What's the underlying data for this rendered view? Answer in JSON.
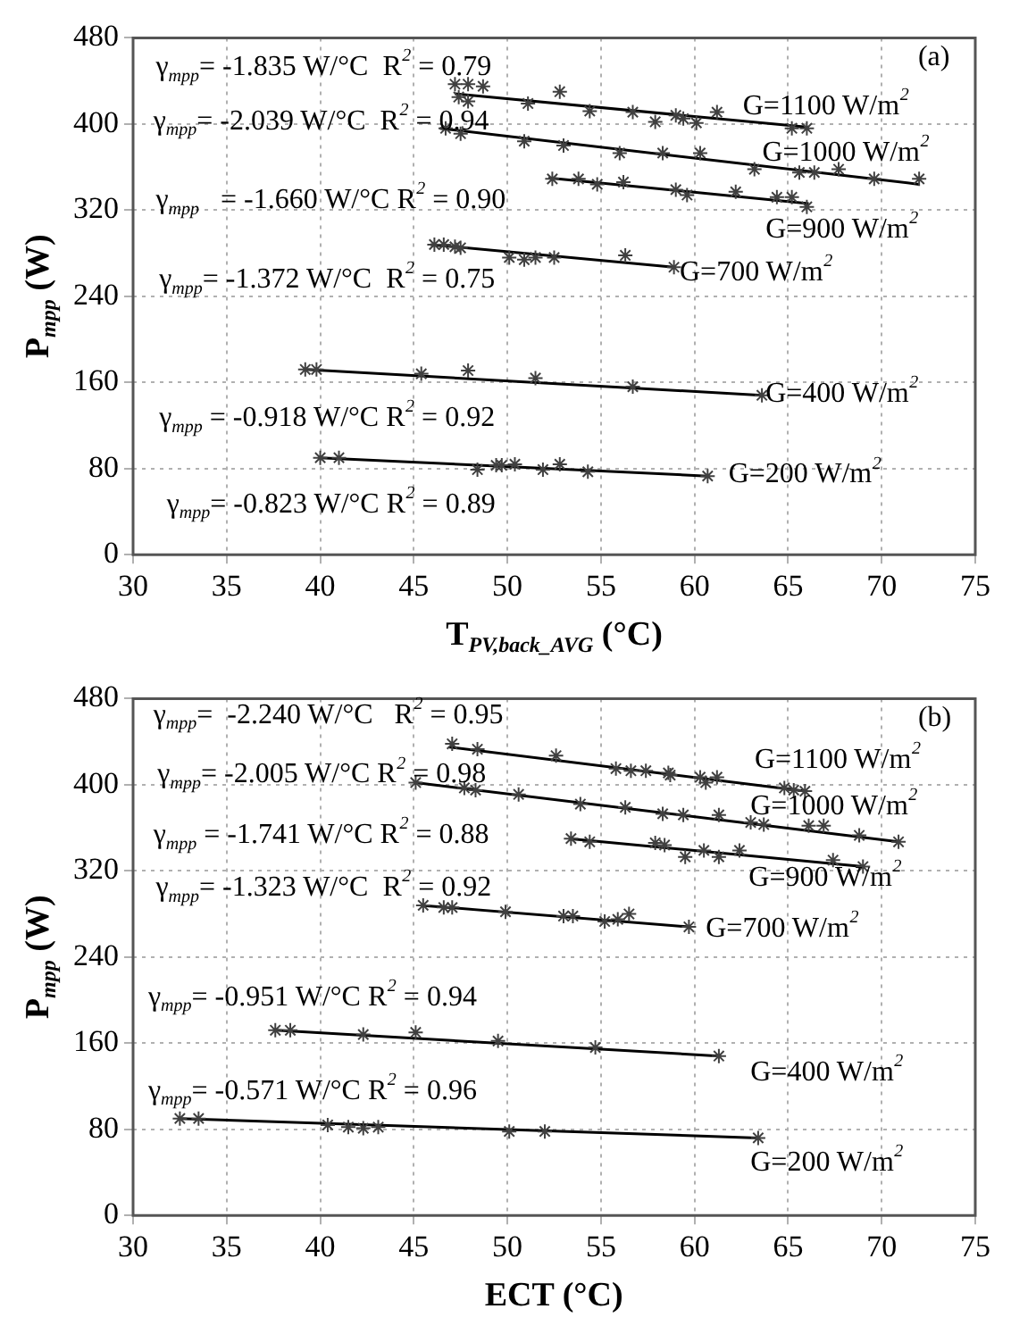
{
  "chart_data": [
    {
      "type": "scatter",
      "xlabel": "T$_{PV,back_AVG}$ (°C)",
      "ylabel": "P$_{mpp}$ (W)",
      "xlim": [
        30,
        75
      ],
      "xticks": [
        30,
        35,
        40,
        45,
        50,
        55,
        60,
        65,
        70,
        75
      ],
      "ylim": [
        0,
        480
      ],
      "yticks": [
        0,
        80,
        160,
        240,
        320,
        400,
        480
      ],
      "grid": true,
      "legend": false,
      "marker": "cross",
      "series": [
        {
          "color": "#404040",
          "x": [
            47.2,
            47.9,
            48.7,
            47.4,
            47.9,
            51.1,
            52.8,
            54.4,
            56.7,
            57.9,
            59.0,
            59.4,
            60.1,
            61.2,
            65.2,
            66.0
          ],
          "values": [
            437,
            437,
            435,
            425,
            421,
            419,
            430,
            412,
            411,
            402,
            408,
            405,
            401,
            411,
            396,
            396
          ]
        },
        {
          "color": "#404040",
          "x": [
            46.7,
            47.5,
            50.9,
            53.0,
            56.0,
            58.3,
            60.3,
            63.2,
            65.6,
            66.4,
            67.7,
            69.6,
            72.0
          ],
          "values": [
            396,
            391,
            384,
            380,
            373,
            373,
            373,
            358,
            355,
            355,
            358,
            349,
            349
          ]
        },
        {
          "color": "#404040",
          "x": [
            52.4,
            53.8,
            54.8,
            56.2,
            59.0,
            59.6,
            62.2,
            64.4,
            65.2,
            66.0
          ],
          "values": [
            349,
            349,
            344,
            346,
            339,
            334,
            337,
            332,
            332,
            323
          ]
        },
        {
          "color": "#404040",
          "x": [
            46.1,
            46.6,
            47.2,
            47.5,
            50.1,
            50.9,
            51.5,
            52.5,
            56.3,
            58.9
          ],
          "values": [
            288,
            288,
            286,
            285,
            276,
            274,
            276,
            276,
            278,
            267
          ]
        },
        {
          "color": "#404040",
          "x": [
            39.2,
            39.8,
            45.4,
            47.9,
            51.5,
            56.7,
            63.6
          ],
          "values": [
            172,
            172,
            168,
            171,
            164,
            156,
            148
          ]
        },
        {
          "color": "#404040",
          "x": [
            40.0,
            41.0,
            48.4,
            49.4,
            49.7,
            50.4,
            51.9,
            52.8,
            54.3,
            60.7
          ],
          "values": [
            90,
            90,
            79,
            83,
            83,
            84,
            79,
            84,
            77,
            73
          ]
        },
        {
          "type": "line",
          "marker": "none",
          "color": "#000000",
          "x": [
            47.2,
            66.1
          ],
          "values": [
            428,
            397
          ]
        },
        {
          "type": "line",
          "marker": "none",
          "color": "#000000",
          "x": [
            46.4,
            72.0
          ],
          "values": [
            396,
            344
          ]
        },
        {
          "type": "line",
          "marker": "none",
          "color": "#000000",
          "x": [
            52.2,
            66.1
          ],
          "values": [
            350,
            326
          ]
        },
        {
          "type": "line",
          "marker": "none",
          "color": "#000000",
          "x": [
            45.9,
            58.9
          ],
          "values": [
            288,
            267
          ]
        },
        {
          "type": "line",
          "marker": "none",
          "color": "#000000",
          "x": [
            39.2,
            63.6
          ],
          "values": [
            172,
            148
          ]
        },
        {
          "type": "line",
          "marker": "none",
          "color": "#000000",
          "x": [
            40.0,
            60.7
          ],
          "values": [
            90,
            73
          ]
        }
      ],
      "annotations": [
        "(a)",
        "γ$_{mpp}$= -1.835 W/°C  R$^{2}$ = 0.79",
        "γ$_{mpp}$= -2.039 W/°C  R$^{2}$ = 0.94",
        "γ$_{mpp}$   = -1.660 W/°C R$^{2}$ = 0.90",
        "γ$_{mpp}$= -1.372 W/°C  R$^{2}$ = 0.75",
        "γ$_{mpp}$ = -0.918 W/°C R$^{2}$ = 0.92",
        "γ$_{mpp}$= -0.823 W/°C R$^{2}$ = 0.89",
        "G=1100 W/m$^{2}$",
        "G=1000 W/m$^{2}$",
        "G=900 W/m$^{2}$",
        "G=700 W/m$^{2}$",
        "G=400 W/m$^{2}$",
        "G=200 W/m$^{2}$"
      ]
    },
    {
      "type": "scatter",
      "xlabel": "ECT (°C)",
      "ylabel": "P$_{mpp}$ (W)",
      "xlim": [
        30,
        75
      ],
      "xticks": [
        30,
        35,
        40,
        45,
        50,
        55,
        60,
        65,
        70,
        75
      ],
      "ylim": [
        0,
        480
      ],
      "yticks": [
        0,
        80,
        160,
        240,
        320,
        400,
        480
      ],
      "grid": true,
      "legend": false,
      "marker": "cross",
      "series": [
        {
          "color": "#404040",
          "x": [
            47.05,
            48.4,
            52.6,
            55.8,
            56.6,
            57.4,
            58.6,
            58.7,
            60.3,
            60.6,
            61.2,
            64.8,
            65.3,
            65.9
          ],
          "values": [
            438,
            433,
            427,
            415,
            413,
            413,
            411,
            409,
            407,
            402,
            407,
            397,
            395,
            394
          ]
        },
        {
          "color": "#404040",
          "x": [
            45.1,
            47.7,
            48.3,
            50.6,
            53.9,
            56.3,
            58.3,
            59.4,
            61.3,
            63.0,
            63.7,
            66.1,
            66.9,
            68.8,
            70.9
          ],
          "values": [
            402,
            397,
            395,
            391,
            382,
            379,
            373,
            372,
            372,
            365,
            363,
            362,
            362,
            353,
            347
          ]
        },
        {
          "color": "#404040",
          "x": [
            53.4,
            54.4,
            57.9,
            58.4,
            59.5,
            60.5,
            61.3,
            62.4,
            67.4,
            69.0
          ],
          "values": [
            350,
            347,
            346,
            344,
            333,
            339,
            333,
            339,
            330,
            324
          ]
        },
        {
          "color": "#404040",
          "x": [
            45.5,
            46.6,
            47.05,
            49.9,
            53.0,
            53.5,
            55.2,
            55.9,
            56.5,
            59.7
          ],
          "values": [
            288,
            286,
            286,
            282,
            278,
            278,
            273,
            275,
            280,
            268
          ]
        },
        {
          "color": "#404040",
          "x": [
            37.6,
            38.4,
            42.3,
            45.1,
            49.5,
            54.7,
            61.3
          ],
          "values": [
            172,
            172,
            168,
            170,
            162,
            156,
            148
          ]
        },
        {
          "color": "#404040",
          "x": [
            32.5,
            33.5,
            40.4,
            41.5,
            42.3,
            43.1,
            50.1,
            52.0,
            63.4
          ],
          "values": [
            90,
            90,
            84,
            82,
            81,
            82,
            78,
            78,
            72
          ]
        },
        {
          "type": "line",
          "marker": "none",
          "color": "#000000",
          "x": [
            46.9,
            65.9
          ],
          "values": [
            435,
            394
          ]
        },
        {
          "type": "line",
          "marker": "none",
          "color": "#000000",
          "x": [
            45.1,
            70.9
          ],
          "values": [
            402,
            347
          ]
        },
        {
          "type": "line",
          "marker": "none",
          "color": "#000000",
          "x": [
            53.3,
            69.0
          ],
          "values": [
            350,
            324
          ]
        },
        {
          "type": "line",
          "marker": "none",
          "color": "#000000",
          "x": [
            45.4,
            59.7
          ],
          "values": [
            288,
            268
          ]
        },
        {
          "type": "line",
          "marker": "none",
          "color": "#000000",
          "x": [
            37.6,
            61.3
          ],
          "values": [
            172,
            148
          ]
        },
        {
          "type": "line",
          "marker": "none",
          "color": "#000000",
          "x": [
            32.5,
            63.4
          ],
          "values": [
            90,
            72
          ]
        }
      ],
      "annotations": [
        "(b)",
        "γ$_{mpp}$=  -2.240 W/°C   R$^{2}$ = 0.95",
        "γ$_{mpp}$= -2.005 W/°C R$^{2}$ = 0.98",
        "γ$_{mpp}$ = -1.741 W/°C R$^{2}$ = 0.88",
        "γ$_{mpp}$= -1.323 W/°C  R$^{2}$ = 0.92",
        "γ$_{mpp}$= -0.951 W/°C R$^{2}$ = 0.94",
        "γ$_{mpp}$= -0.571 W/°C R$^{2}$ = 0.96",
        "G=1100 W/m$^{2}$",
        "G=1000 W/m$^{2}$",
        "G=900 W/m$^{2}$",
        "G=700 W/m$^{2}$",
        "G=400 W/m$^{2}$",
        "G=200 W/m$^{2}$"
      ]
    }
  ]
}
